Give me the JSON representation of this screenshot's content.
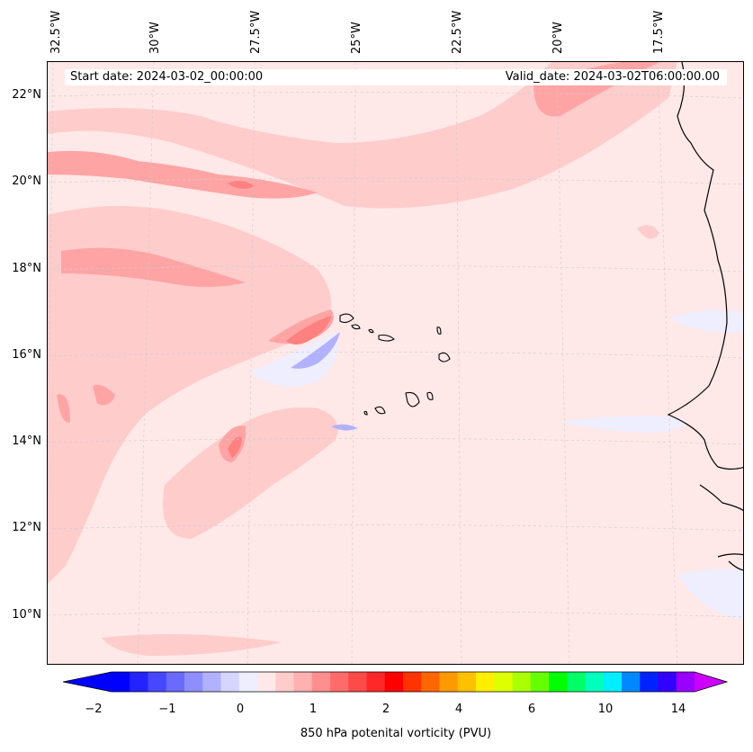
{
  "map": {
    "start_date": "Start date: 2024-03-02_00:00:00",
    "valid_date": "Valid_date: 2024-03-02T06:00:00.00",
    "lon_labels": [
      "32.5°W",
      "30°W",
      "27.5°W",
      "25°W",
      "22.5°W",
      "20°W",
      "17.5°W"
    ],
    "lat_labels": [
      "22°N",
      "20°N",
      "18°N",
      "16°N",
      "14°N",
      "12°N",
      "10°N"
    ],
    "variable": "850 hPa potenital vorticity (PVU)"
  },
  "colorbar": {
    "tick_labels": [
      "−2",
      "−1",
      "0",
      "1",
      "2",
      "4",
      "6",
      "10",
      "14"
    ],
    "colors": [
      "#0000ff",
      "#2323ff",
      "#4747ff",
      "#6a6aff",
      "#8e8eff",
      "#b1b1ff",
      "#d5d5ff",
      "#eeeeff",
      "#ffe8e8",
      "#ffcccc",
      "#ffb0b0",
      "#ff8e8e",
      "#ff6b6b",
      "#ff4a4a",
      "#ff2828",
      "#ff0000",
      "#ff3300",
      "#ff6600",
      "#ff9900",
      "#ffc000",
      "#ffee00",
      "#ddff00",
      "#aaff00",
      "#66ff00",
      "#00ff00",
      "#00ff66",
      "#00ffbb",
      "#00eeff",
      "#0088ff",
      "#0022ff",
      "#3300ff",
      "#9900ff"
    ],
    "extend_min_color": "#0000ff",
    "extend_max_color": "#cc00ff"
  }
}
